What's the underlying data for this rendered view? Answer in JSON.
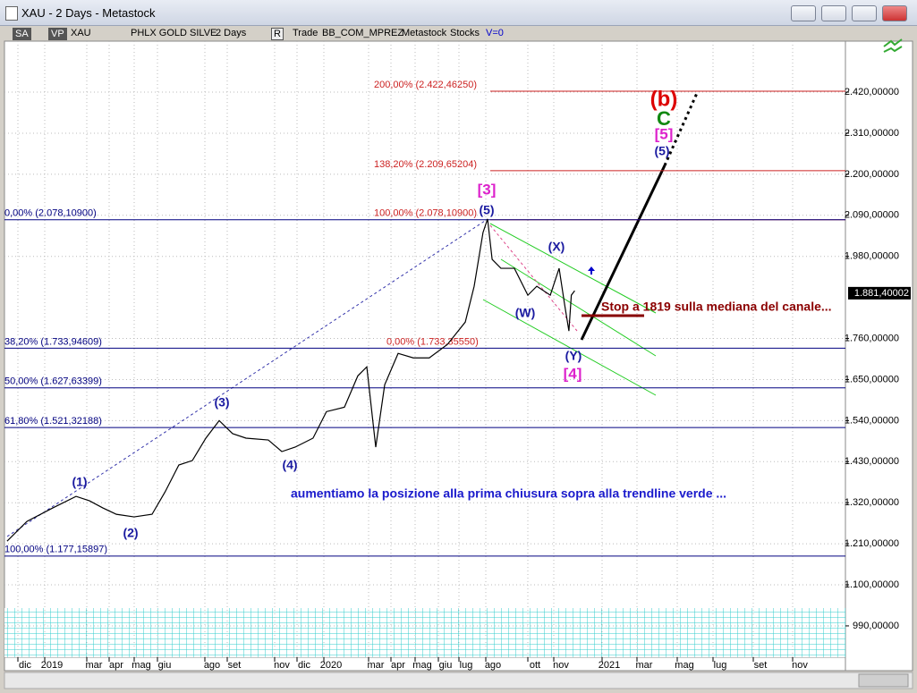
{
  "window": {
    "title": "XAU - 2 Days - Metastock"
  },
  "toolbar": [
    "SA",
    "VP",
    "XAU",
    "PHLX GOLD SILVE",
    "2 Days",
    "R",
    "Trade",
    "BB_COM_MPREZ",
    "Metastock",
    "Stocks",
    "V=0"
  ],
  "chart_data": {
    "type": "line",
    "x": [
      -0.67,
      0.07,
      1.04,
      2.15,
      2.79,
      3.4,
      4,
      4.71,
      5.46,
      6.02,
      6.6,
      7.17,
      7.74,
      8.32,
      8.92,
      9.49,
      10.43,
      11,
      11.6,
      12.33,
      12.83,
      13.6,
      14.2,
      14.6,
      15,
      15.4,
      16,
      16.63,
      17.3,
      18.09,
      18.96,
      19.3,
      19.63,
      19.8,
      19.97,
      20.38,
      21.02,
      21.66,
      22.07,
      22.59,
      22.93,
      23.15,
      23.33,
      23.43,
      23.57
    ],
    "series": [
      {
        "name": "XAU",
        "color": "#000000",
        "values": [
          1217,
          1270,
          1306,
          1337,
          1325,
          1306,
          1289,
          1282,
          1289,
          1349,
          1421,
          1433,
          1493,
          1540,
          1505,
          1493,
          1488,
          1457,
          1469,
          1493,
          1564,
          1576,
          1660,
          1684,
          1469,
          1636,
          1720,
          1708,
          1708,
          1744,
          1804,
          1900,
          2044,
          2080,
          1972,
          1948,
          1948,
          1876,
          1900,
          1876,
          1948,
          1852,
          1780,
          1876,
          1888
        ]
      }
    ],
    "xlim": [
      -0.9,
      37.1
    ],
    "xticks": [
      {
        "value": 0,
        "label": "dic"
      },
      {
        "value": 1,
        "label": "2019"
      },
      {
        "value": 3,
        "label": "mar"
      },
      {
        "value": 4,
        "label": "apr"
      },
      {
        "value": 5,
        "label": "mag"
      },
      {
        "value": 6,
        "label": "giu"
      },
      {
        "value": 8,
        "label": "ago"
      },
      {
        "value": 9,
        "label": "set"
      },
      {
        "value": 11,
        "label": "nov"
      },
      {
        "value": 12,
        "label": "dic"
      },
      {
        "value": 13,
        "label": "2020"
      },
      {
        "value": 15,
        "label": "mar"
      },
      {
        "value": 16,
        "label": "apr"
      },
      {
        "value": 17,
        "label": "mag"
      },
      {
        "value": 18,
        "label": "giu"
      },
      {
        "value": 19,
        "label": "lug"
      },
      {
        "value": 20,
        "label": "ago"
      },
      {
        "value": 22,
        "label": "ott"
      },
      {
        "value": 23,
        "label": "nov"
      },
      {
        "value": 25,
        "label": "2021"
      },
      {
        "value": 27,
        "label": "mar"
      },
      {
        "value": 29,
        "label": "mag"
      },
      {
        "value": 31,
        "label": "lug"
      },
      {
        "value": 33,
        "label": "set"
      },
      {
        "value": 35,
        "label": "nov"
      }
    ],
    "ylim": [
      906,
      2595
    ],
    "yticks": [
      {
        "value": 990,
        "label": "990,00000"
      },
      {
        "value": 1100,
        "label": "1.100,00000"
      },
      {
        "value": 1210,
        "label": "1.210,00000"
      },
      {
        "value": 1320,
        "label": "1.320,00000"
      },
      {
        "value": 1430,
        "label": "1.430,00000"
      },
      {
        "value": 1540,
        "label": "1.540,00000"
      },
      {
        "value": 1650,
        "label": "1.650,00000"
      },
      {
        "value": 1760,
        "label": "1.760,00000"
      },
      {
        "value": 1980,
        "label": "1.980,00000"
      },
      {
        "value": 2090,
        "label": "2.090,00000"
      },
      {
        "value": 2200,
        "label": "2.200,00000"
      },
      {
        "value": 2310,
        "label": "2.310,00000"
      },
      {
        "value": 2420,
        "label": "2.420,00000"
      }
    ],
    "grid": true,
    "last_price": {
      "value": 1881.40002,
      "label": "1.881,40002"
    },
    "fib_levels": [
      {
        "label": "200,00% (2.422,46250)",
        "value": 2422.4625,
        "color": "#cc2222"
      },
      {
        "label": "138,20% (2.209,65204)",
        "value": 2209.65204,
        "color": "#cc2222"
      },
      {
        "label": "100,00% (2.078,10900)",
        "value": 2078.109,
        "color": "#cc2222"
      },
      {
        "label": "0,00% (2.078,10900)",
        "value": 2078.109,
        "color": "#000080"
      },
      {
        "label": "0,00% (1.733,35550)",
        "value": 1733.3555,
        "color": "#cc2222"
      },
      {
        "label": "38,20% (1.733,94609)",
        "value": 1733.94609,
        "color": "#000080"
      },
      {
        "label": "50,00% (1.627,63399)",
        "value": 1627.63399,
        "color": "#000080"
      },
      {
        "label": "61,80% (1.521,32188)",
        "value": 1521.32188,
        "color": "#000080"
      },
      {
        "label": "100,00% (1.177,15897)",
        "value": 1177.15897,
        "color": "#000080"
      }
    ],
    "annotations": [
      {
        "text": "(b)",
        "color": "#dd0000"
      },
      {
        "text": "C",
        "color": "#118811"
      },
      {
        "text": "[5]",
        "color": "#dd22cc"
      },
      {
        "text": "(5)",
        "color": "#1a1aa0"
      },
      {
        "text": "[3]",
        "color": "#dd22cc"
      },
      {
        "text": "(5)",
        "color": "#1a1aa0"
      },
      {
        "text": "(X)",
        "color": "#1a1aa0"
      },
      {
        "text": "(W)",
        "color": "#1a1aa0"
      },
      {
        "text": "(Y)",
        "color": "#1a1aa0"
      },
      {
        "text": "[4]",
        "color": "#dd22cc"
      },
      {
        "text": "(3)",
        "color": "#1a1aa0"
      },
      {
        "text": "(4)",
        "color": "#1a1aa0"
      },
      {
        "text": "(1)",
        "color": "#1a1aa0"
      },
      {
        "text": "(2)",
        "color": "#1a1aa0"
      },
      {
        "text": "Stop a 1819 sulla mediana del canale...",
        "color": "#8b0000"
      },
      {
        "text": "aumentiamo la posizione alla prima chiusura sopra alla trendline verde ...",
        "color": "#1a1acc"
      }
    ]
  }
}
